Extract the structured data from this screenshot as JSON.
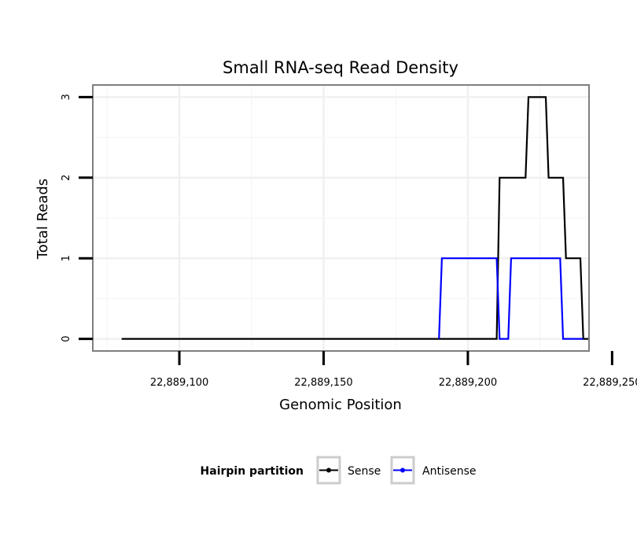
{
  "chart_data": {
    "type": "line",
    "title": "Small RNA-seq Read Density",
    "xlabel": "Genomic Position",
    "ylabel": "Total Reads",
    "xlim": [
      22889070,
      22889242
    ],
    "ylim": [
      -0.15,
      3.15
    ],
    "x_ticks": [
      {
        "value": 22889100,
        "label": "22,889,100"
      },
      {
        "value": 22889150,
        "label": "22,889,150"
      },
      {
        "value": 22889200,
        "label": "22,889,200"
      },
      {
        "value": 22889250,
        "label": "22,889,250"
      }
    ],
    "y_ticks": [
      {
        "value": 0,
        "label": "0"
      },
      {
        "value": 1,
        "label": "1"
      },
      {
        "value": 2,
        "label": "2"
      },
      {
        "value": 3,
        "label": "3"
      }
    ],
    "grid": true,
    "legend": {
      "title": "Hairpin partition",
      "position": "bottom"
    },
    "series": [
      {
        "name": "Sense",
        "color": "#000000",
        "x": [
          22889080,
          22889210,
          22889211,
          22889220,
          22889221,
          22889227,
          22889228,
          22889233,
          22889234,
          22889239,
          22889240,
          22889242
        ],
        "y": [
          0,
          0,
          2,
          2,
          3,
          3,
          2,
          2,
          1,
          1,
          0,
          0
        ]
      },
      {
        "name": "Antisense",
        "color": "#0000ff",
        "x": [
          22889190,
          22889191,
          22889210,
          22889211,
          22889214,
          22889215,
          22889232,
          22889233,
          22889240
        ],
        "y": [
          0,
          1,
          1,
          0,
          0,
          1,
          1,
          0,
          0
        ]
      }
    ]
  }
}
